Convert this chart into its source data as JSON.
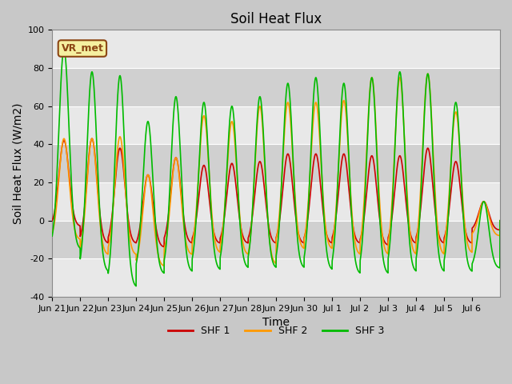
{
  "title": "Soil Heat Flux",
  "xlabel": "Time",
  "ylabel": "Soil Heat Flux (W/m2)",
  "ylim": [
    -40,
    100
  ],
  "yticks": [
    -40,
    -20,
    0,
    20,
    40,
    60,
    80,
    100
  ],
  "xtick_labels": [
    "Jun 21",
    "Jun 22",
    "Jun 23",
    "Jun 24",
    "Jun 25",
    "Jun 26",
    "Jun 27",
    "Jun 28",
    "Jun 29",
    "Jun 30",
    "Jul 1",
    "Jul 2",
    "Jul 3",
    "Jul 4",
    "Jul 5",
    "Jul 6"
  ],
  "annotation_text": "VR_met",
  "annotation_box_facecolor": "#f5f0a0",
  "annotation_box_edgecolor": "#8b4513",
  "line_colors": [
    "#cc0000",
    "#ff9900",
    "#00bb00"
  ],
  "line_labels": [
    "SHF 1",
    "SHF 2",
    "SHF 3"
  ],
  "line_width": 1.2,
  "bg_color": "#d8d8d8",
  "band_light": "#e8e8e8",
  "band_dark": "#d0d0d0",
  "grid_color": "#ffffff",
  "title_fontsize": 12,
  "axis_label_fontsize": 10,
  "tick_fontsize": 8,
  "legend_fontsize": 9,
  "n_days": 16,
  "peaks_shf1": [
    42,
    43,
    38,
    24,
    33,
    29,
    30,
    31,
    35,
    35,
    35,
    34,
    34,
    38,
    31,
    10
  ],
  "peaks_shf2": [
    43,
    43,
    44,
    24,
    33,
    55,
    52,
    60,
    62,
    62,
    63,
    75,
    75,
    77,
    57,
    10
  ],
  "peaks_shf3": [
    90,
    78,
    76,
    52,
    65,
    62,
    60,
    65,
    72,
    75,
    72,
    75,
    78,
    77,
    62,
    10
  ],
  "troughs_shf1": [
    -3,
    -12,
    -12,
    -14,
    -12,
    -12,
    -12,
    -12,
    -12,
    -12,
    -12,
    -13,
    -12,
    -12,
    -12,
    -5
  ],
  "troughs_shf2": [
    -10,
    -18,
    -18,
    -24,
    -18,
    -17,
    -18,
    -23,
    -15,
    -15,
    -18,
    -18,
    -18,
    -18,
    -17,
    -8
  ],
  "troughs_shf3": [
    -15,
    -27,
    -35,
    -28,
    -27,
    -26,
    -25,
    -25,
    -25,
    -26,
    -28,
    -28,
    -27,
    -27,
    -27,
    -25
  ]
}
